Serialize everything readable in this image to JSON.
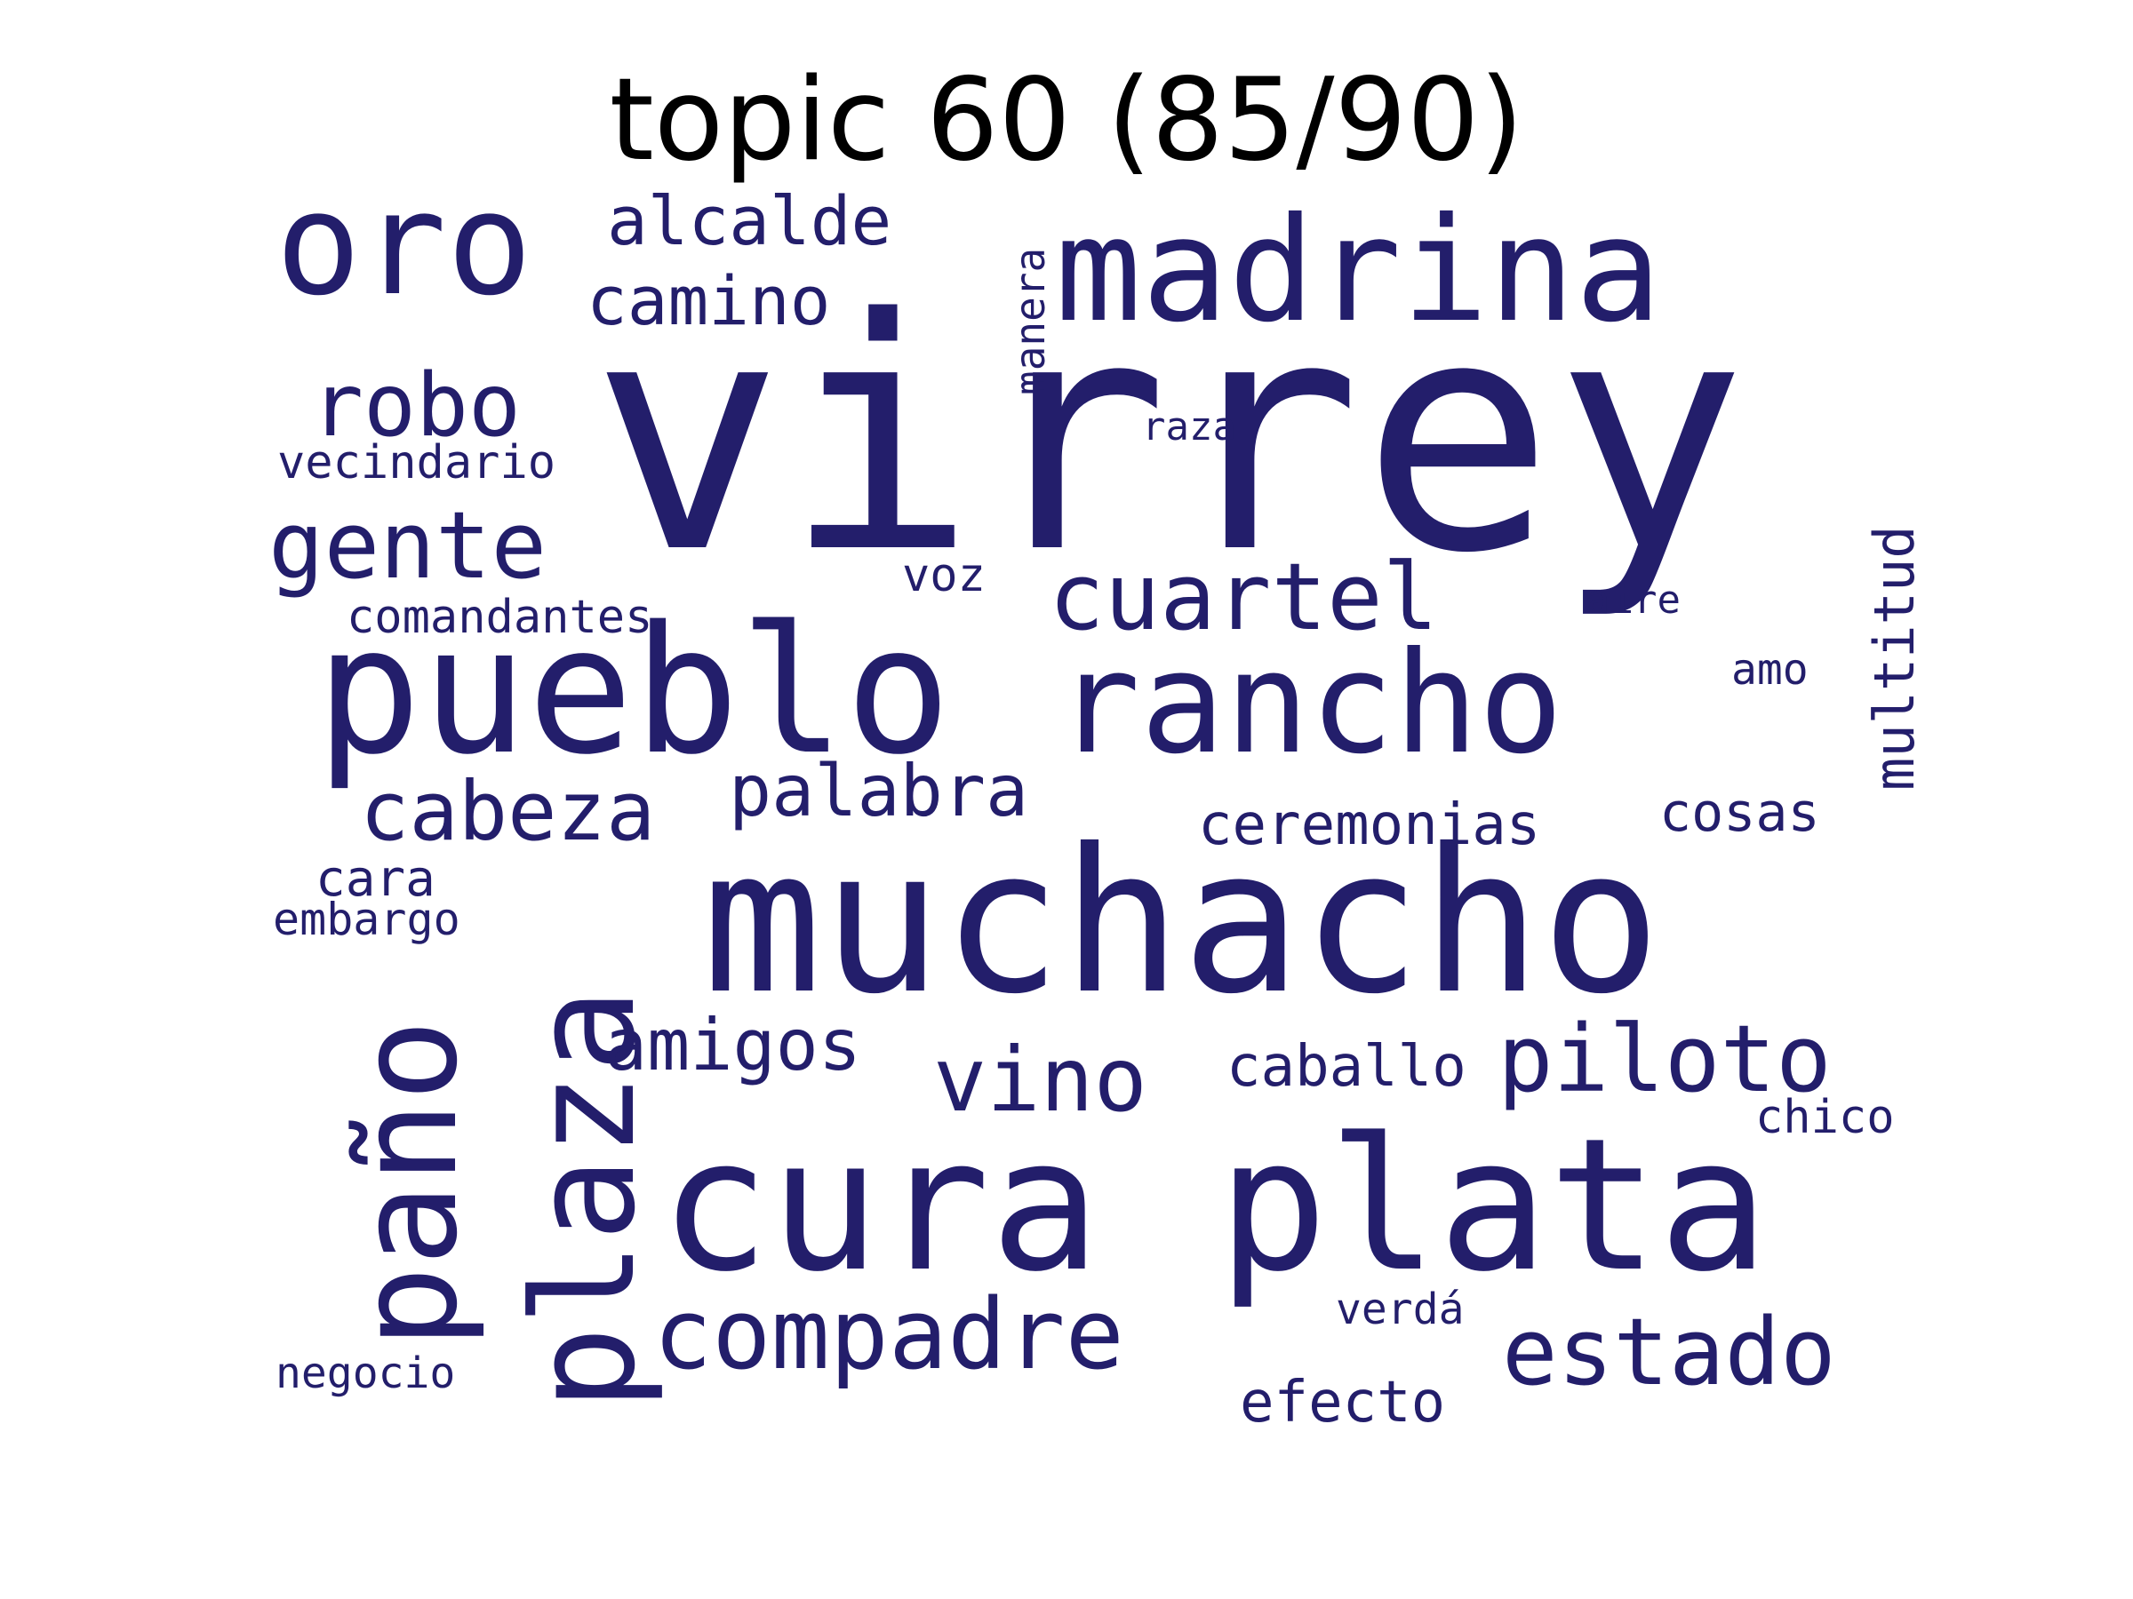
{
  "title": "topic 60 (85/90)",
  "word_color": "#231e6b",
  "words": [
    {
      "text": "virrey"
    },
    {
      "text": "muchacho"
    },
    {
      "text": "pueblo"
    },
    {
      "text": "cura"
    },
    {
      "text": "plata"
    },
    {
      "text": "rancho"
    },
    {
      "text": "madrina"
    },
    {
      "text": "paño"
    },
    {
      "text": "plaza"
    },
    {
      "text": "oro"
    },
    {
      "text": "compadre"
    },
    {
      "text": "cuartel"
    },
    {
      "text": "estado"
    },
    {
      "text": "piloto"
    },
    {
      "text": "gente"
    },
    {
      "text": "cabeza"
    },
    {
      "text": "vino"
    },
    {
      "text": "robo"
    },
    {
      "text": "palabra"
    },
    {
      "text": "amigos"
    },
    {
      "text": "camino"
    },
    {
      "text": "alcalde"
    },
    {
      "text": "multitud"
    },
    {
      "text": "ceremonias"
    },
    {
      "text": "caballo"
    },
    {
      "text": "efecto"
    },
    {
      "text": "cosas"
    },
    {
      "text": "cara"
    },
    {
      "text": "comandantes"
    },
    {
      "text": "vecindario"
    },
    {
      "text": "manera"
    },
    {
      "text": "chico"
    },
    {
      "text": "voz"
    },
    {
      "text": "embargo"
    },
    {
      "text": "negocio"
    },
    {
      "text": "amo"
    },
    {
      "text": "raza"
    },
    {
      "text": "aire"
    },
    {
      "text": "verdá"
    }
  ]
}
